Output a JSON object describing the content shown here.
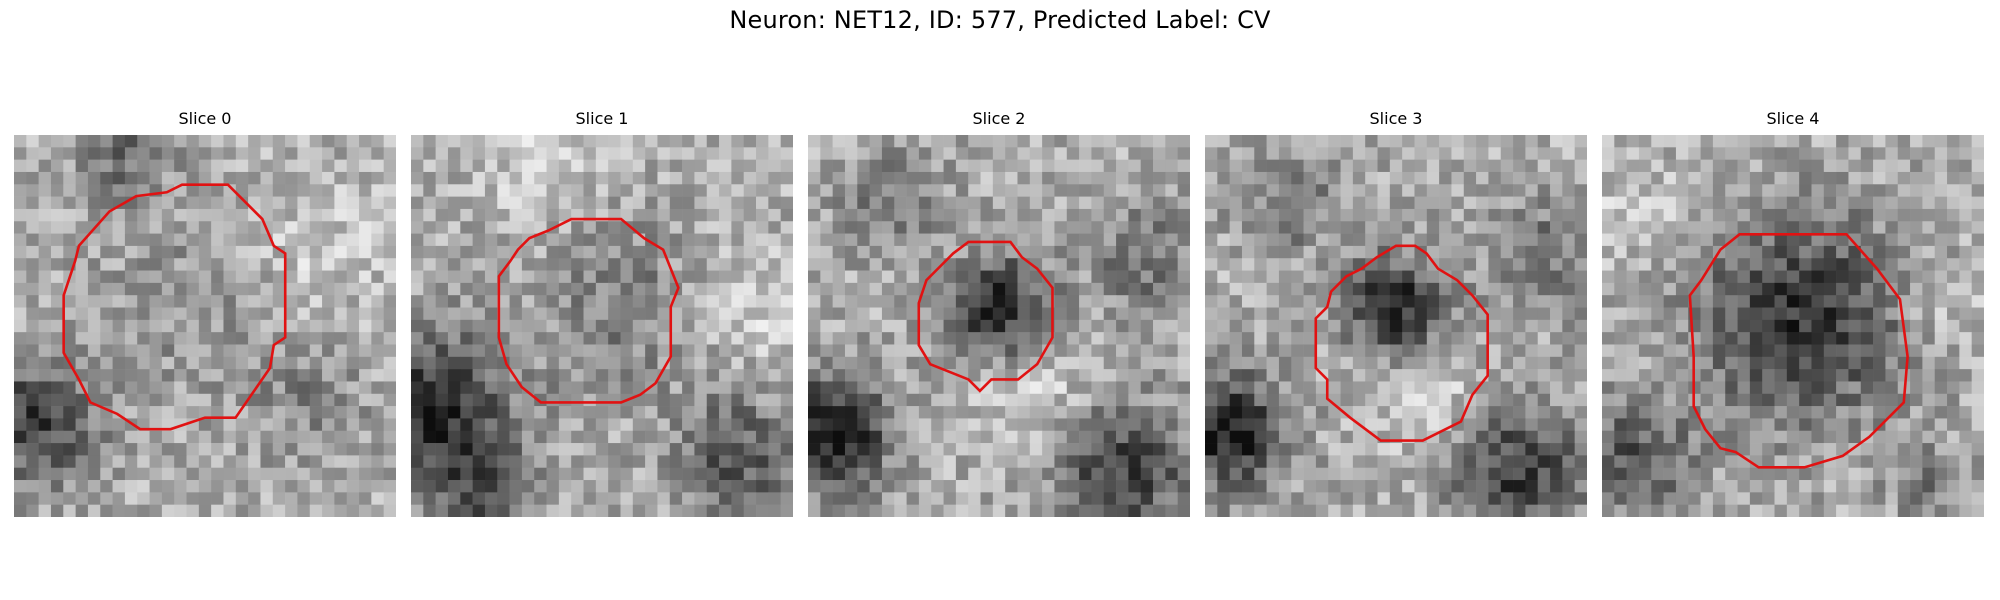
{
  "figure": {
    "title": "Neuron: NET12, ID: 577, Predicted Label: CV"
  },
  "slices": [
    {
      "title": "Slice 0",
      "background_tone": "light",
      "outline_color": "#e11212",
      "outline": [
        [
          0.44,
          0.13
        ],
        [
          0.56,
          0.13
        ],
        [
          0.65,
          0.22
        ],
        [
          0.68,
          0.29
        ],
        [
          0.71,
          0.31
        ],
        [
          0.71,
          0.53
        ],
        [
          0.68,
          0.55
        ],
        [
          0.67,
          0.61
        ],
        [
          0.58,
          0.74
        ],
        [
          0.5,
          0.74
        ],
        [
          0.41,
          0.77
        ],
        [
          0.33,
          0.77
        ],
        [
          0.27,
          0.73
        ],
        [
          0.2,
          0.7
        ],
        [
          0.17,
          0.64
        ],
        [
          0.13,
          0.57
        ],
        [
          0.13,
          0.42
        ],
        [
          0.16,
          0.33
        ],
        [
          0.17,
          0.29
        ],
        [
          0.25,
          0.2
        ],
        [
          0.32,
          0.16
        ],
        [
          0.4,
          0.15
        ]
      ]
    },
    {
      "title": "Slice 1",
      "background_tone": "mixed",
      "outline_color": "#e11212",
      "outline": [
        [
          0.42,
          0.22
        ],
        [
          0.55,
          0.22
        ],
        [
          0.61,
          0.27
        ],
        [
          0.66,
          0.3
        ],
        [
          0.7,
          0.4
        ],
        [
          0.68,
          0.45
        ],
        [
          0.68,
          0.58
        ],
        [
          0.64,
          0.65
        ],
        [
          0.6,
          0.68
        ],
        [
          0.55,
          0.7
        ],
        [
          0.34,
          0.7
        ],
        [
          0.29,
          0.66
        ],
        [
          0.25,
          0.6
        ],
        [
          0.23,
          0.53
        ],
        [
          0.23,
          0.37
        ],
        [
          0.26,
          0.33
        ],
        [
          0.28,
          0.3
        ],
        [
          0.31,
          0.27
        ],
        [
          0.36,
          0.25
        ]
      ]
    },
    {
      "title": "Slice 2",
      "background_tone": "bright",
      "outline_color": "#e11212",
      "outline": [
        [
          0.42,
          0.28
        ],
        [
          0.53,
          0.28
        ],
        [
          0.56,
          0.32
        ],
        [
          0.6,
          0.35
        ],
        [
          0.64,
          0.4
        ],
        [
          0.64,
          0.53
        ],
        [
          0.6,
          0.6
        ],
        [
          0.55,
          0.64
        ],
        [
          0.48,
          0.64
        ],
        [
          0.45,
          0.67
        ],
        [
          0.42,
          0.64
        ],
        [
          0.37,
          0.62
        ],
        [
          0.32,
          0.6
        ],
        [
          0.29,
          0.55
        ],
        [
          0.29,
          0.44
        ],
        [
          0.31,
          0.38
        ],
        [
          0.35,
          0.34
        ],
        [
          0.38,
          0.31
        ]
      ]
    },
    {
      "title": "Slice 3",
      "background_tone": "bright",
      "outline_color": "#e11212",
      "outline": [
        [
          0.5,
          0.29
        ],
        [
          0.55,
          0.29
        ],
        [
          0.58,
          0.31
        ],
        [
          0.61,
          0.35
        ],
        [
          0.66,
          0.38
        ],
        [
          0.7,
          0.42
        ],
        [
          0.74,
          0.47
        ],
        [
          0.74,
          0.63
        ],
        [
          0.7,
          0.68
        ],
        [
          0.67,
          0.75
        ],
        [
          0.57,
          0.8
        ],
        [
          0.46,
          0.8
        ],
        [
          0.38,
          0.74
        ],
        [
          0.32,
          0.69
        ],
        [
          0.32,
          0.64
        ],
        [
          0.29,
          0.61
        ],
        [
          0.29,
          0.48
        ],
        [
          0.32,
          0.45
        ],
        [
          0.33,
          0.41
        ],
        [
          0.37,
          0.37
        ],
        [
          0.41,
          0.35
        ],
        [
          0.45,
          0.32
        ]
      ]
    },
    {
      "title": "Slice 4",
      "background_tone": "dark-center",
      "outline_color": "#e11212",
      "outline": [
        [
          0.36,
          0.26
        ],
        [
          0.64,
          0.26
        ],
        [
          0.72,
          0.35
        ],
        [
          0.78,
          0.43
        ],
        [
          0.8,
          0.58
        ],
        [
          0.79,
          0.7
        ],
        [
          0.7,
          0.79
        ],
        [
          0.63,
          0.84
        ],
        [
          0.53,
          0.87
        ],
        [
          0.41,
          0.87
        ],
        [
          0.35,
          0.83
        ],
        [
          0.31,
          0.82
        ],
        [
          0.27,
          0.77
        ],
        [
          0.24,
          0.71
        ],
        [
          0.24,
          0.58
        ],
        [
          0.23,
          0.42
        ],
        [
          0.26,
          0.38
        ],
        [
          0.31,
          0.3
        ]
      ]
    }
  ]
}
